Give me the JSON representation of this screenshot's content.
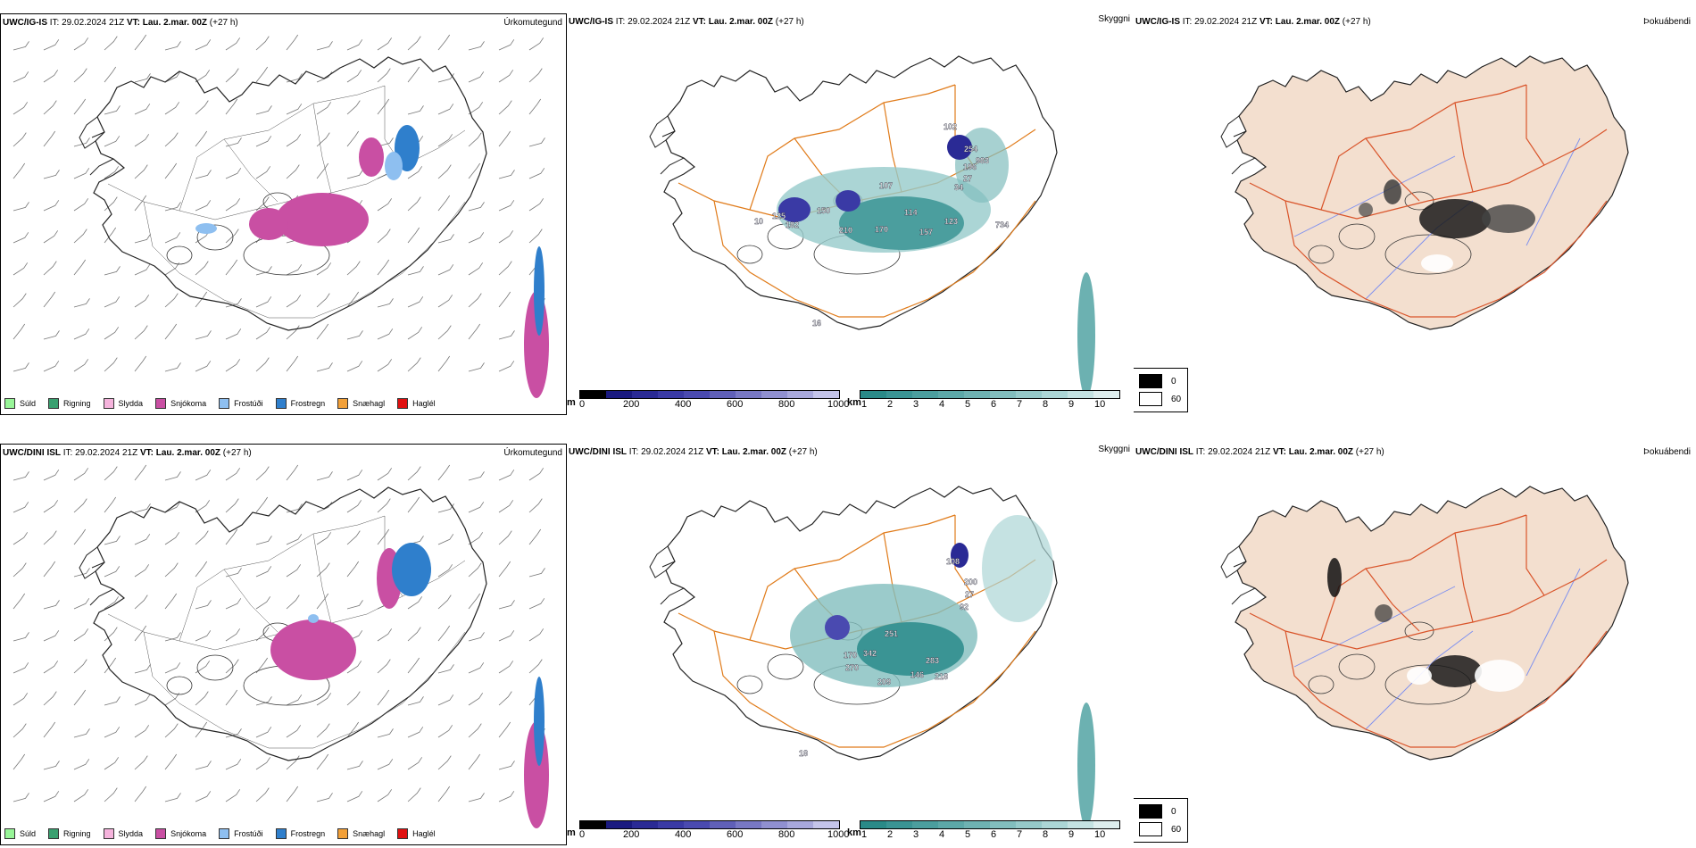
{
  "rows": [
    {
      "model_label": "UWC/IG-IS",
      "it_label": "IT:",
      "it_value": "29.02.2024 21Z",
      "vt_label": "VT:",
      "vt_value": "Lau. 2.mar. 00Z",
      "lead": "(+27 h)"
    },
    {
      "model_label": "UWC/DINI ISL",
      "it_label": "IT:",
      "it_value": "29.02.2024 21Z",
      "vt_label": "VT:",
      "vt_value": "Lau. 2.mar. 00Z",
      "lead": "(+27 h)"
    }
  ],
  "panel_titles": {
    "precip_type": "Úrkomutegund",
    "visibility": "Skyggni",
    "fog": "Þokuábendi"
  },
  "precip_legend": [
    {
      "label": "Súld",
      "color": "#98f598"
    },
    {
      "label": "Rigning",
      "color": "#3aa070"
    },
    {
      "label": "Slydda",
      "color": "#f5b3dc"
    },
    {
      "label": "Snjókoma",
      "color": "#c94fa3"
    },
    {
      "label": "Frostúði",
      "color": "#8ebff0"
    },
    {
      "label": "Frostregn",
      "color": "#2f7fcc"
    },
    {
      "label": "Snæhagl",
      "color": "#f2a038"
    },
    {
      "label": "Haglél",
      "color": "#e01010"
    }
  ],
  "cloud_base_bar": {
    "unit": "m",
    "ticks": [
      "0",
      "200",
      "400",
      "600",
      "800",
      "1000"
    ],
    "colors": [
      "#000000",
      "#1a1a80",
      "#2a2a95",
      "#3a3aa5",
      "#4a4ab0",
      "#6060b8",
      "#7878c4",
      "#9090d0",
      "#a8a8dc",
      "#c4c4ea"
    ]
  },
  "visibility_bar": {
    "unit": "km",
    "ticks": [
      "1",
      "2",
      "3",
      "4",
      "5",
      "6",
      "7",
      "8",
      "9",
      "10"
    ],
    "colors": [
      "#2a8a88",
      "#3a9494",
      "#4b9e9e",
      "#5ca8a8",
      "#6eb2b2",
      "#82bebe",
      "#96caca",
      "#acd6d6",
      "#c4e2e2",
      "#deeeee"
    ]
  },
  "fog_key": [
    {
      "value": "0",
      "color": "#000000"
    },
    {
      "value": "60",
      "color": "#ffffff"
    }
  ],
  "visibility_labels": [
    [
      "102",
      "254",
      "196",
      "983",
      "27",
      "34",
      "107",
      "150",
      "125",
      "10",
      "182",
      "210",
      "170",
      "114",
      "157",
      "123",
      "734",
      "16"
    ],
    [
      "108",
      "200",
      "27",
      "92",
      "251",
      "342",
      "270",
      "209",
      "146",
      "283",
      "218",
      "170",
      "18"
    ]
  ],
  "colors": {
    "coast": "#222222",
    "roads": "#e07b1a",
    "roads_fog": "#d9542a",
    "land_fog": "#f3dfcf",
    "rivers": "#7b8ef0"
  }
}
